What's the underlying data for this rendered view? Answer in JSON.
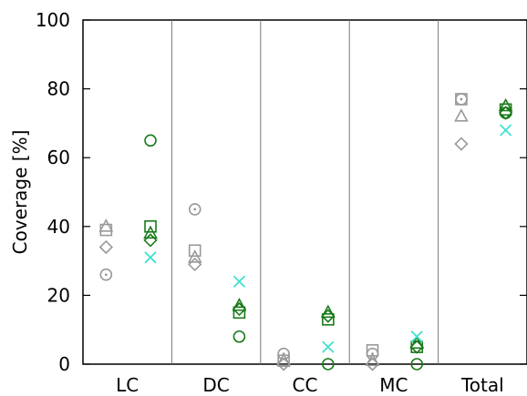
{
  "chart_data": {
    "type": "scatter",
    "title": "",
    "xlabel": "",
    "ylabel": "Coverage [%]",
    "ylim": [
      0,
      100
    ],
    "yticks": [
      0,
      20,
      40,
      60,
      80,
      100
    ],
    "grid": false,
    "legend": "none",
    "categories": [
      "LC",
      "DC",
      "CC",
      "MC",
      "Total"
    ],
    "series": [
      {
        "group": "left",
        "marker": "circle-dot",
        "color": "#999999",
        "values": [
          26,
          45,
          3,
          3,
          77
        ]
      },
      {
        "group": "left",
        "marker": "square",
        "color": "#999999",
        "values": [
          39,
          33,
          1,
          4,
          77
        ]
      },
      {
        "group": "left",
        "marker": "triangle",
        "color": "#999999",
        "values": [
          40,
          31,
          1,
          1,
          72
        ]
      },
      {
        "group": "left",
        "marker": "diamond",
        "color": "#999999",
        "values": [
          34,
          29,
          0,
          0,
          64
        ]
      },
      {
        "group": "right",
        "marker": "circle",
        "color": "#1a7a1a",
        "values": [
          65,
          8,
          0,
          0,
          73
        ]
      },
      {
        "group": "right",
        "marker": "square",
        "color": "#1a7a1a",
        "values": [
          40,
          15,
          13,
          5,
          74
        ]
      },
      {
        "group": "right",
        "marker": "triangle",
        "color": "#1a7a1a",
        "values": [
          38,
          17,
          15,
          6,
          75
        ]
      },
      {
        "group": "right",
        "marker": "diamond",
        "color": "#1a7a1a",
        "values": [
          36,
          16,
          14,
          5,
          73
        ]
      },
      {
        "group": "right",
        "marker": "cross",
        "color": "#40e0d0",
        "values": [
          31,
          24,
          5,
          8,
          68
        ]
      }
    ]
  }
}
